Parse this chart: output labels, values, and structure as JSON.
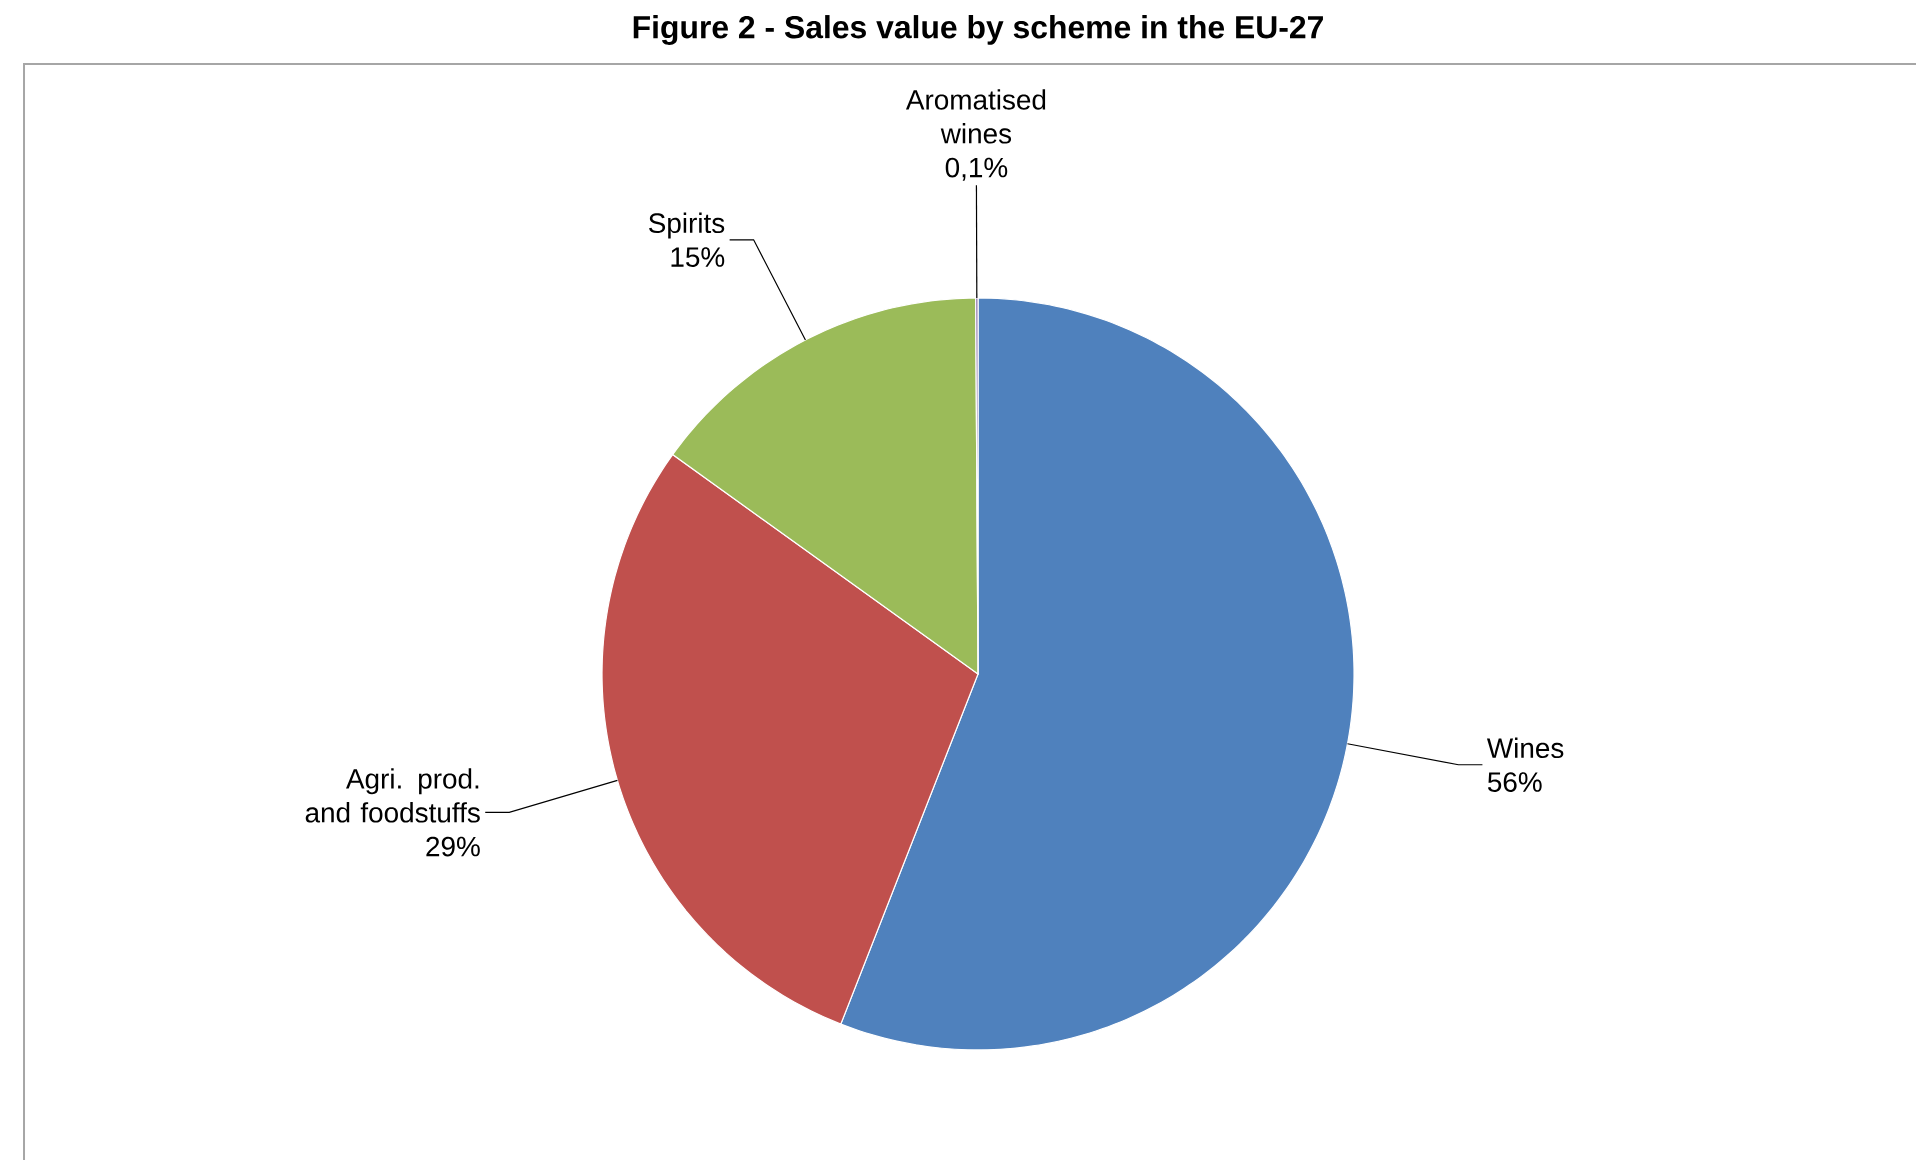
{
  "chart_data": {
    "type": "pie",
    "title": "Figure 2 - Sales value by scheme in the EU-27",
    "categories": [
      "Wines",
      "Agri. prod. and foodstuffs",
      "Spirits",
      "Aromatised wines"
    ],
    "values": [
      56,
      29,
      15,
      0.1
    ],
    "value_labels": [
      "56%",
      "29%",
      "15%",
      "0,1%"
    ],
    "colors": [
      "#4f81bd",
      "#c0504d",
      "#9bbb59",
      "#8064a2"
    ]
  }
}
